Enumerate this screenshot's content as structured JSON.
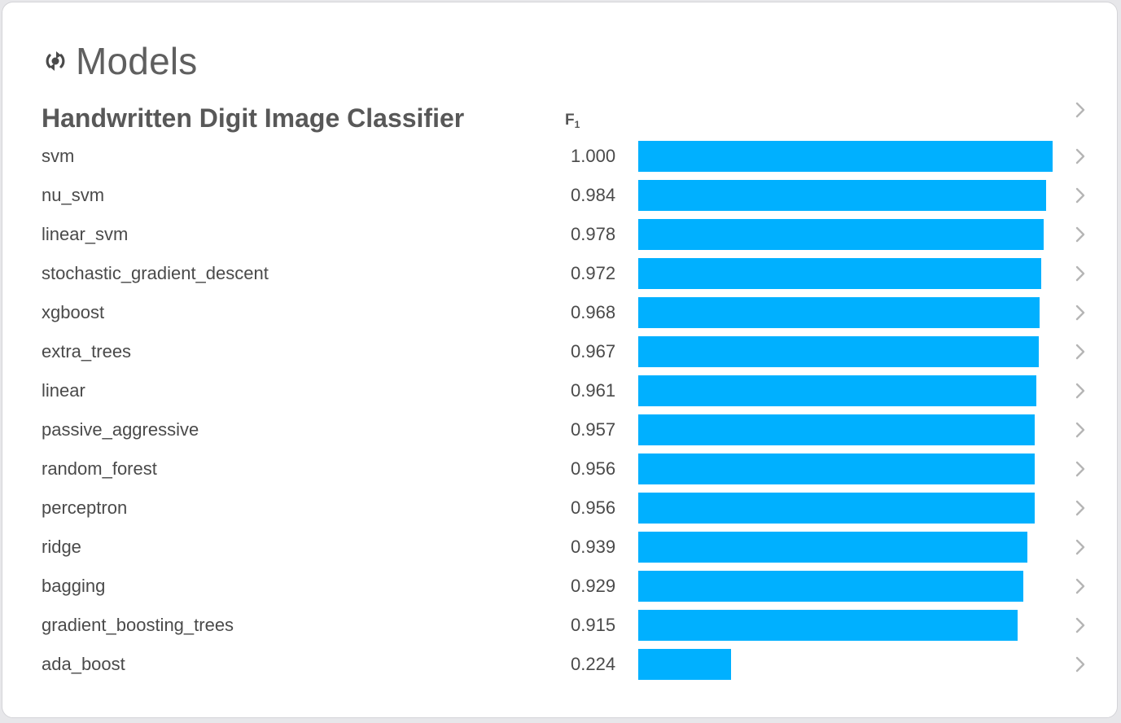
{
  "header": {
    "title": "Models",
    "icon": "model-cycle-icon"
  },
  "section": {
    "title": "Handwritten Digit Image Classifier",
    "metric_label": "F",
    "metric_subscript": "1"
  },
  "colors": {
    "bar": "#00b0ff",
    "chevron": "#b5b5b5"
  },
  "chart_data": {
    "type": "bar",
    "orientation": "horizontal",
    "title": "Handwritten Digit Image Classifier",
    "xlabel": "F1",
    "xlim": [
      0,
      1
    ],
    "categories": [
      "svm",
      "nu_svm",
      "linear_svm",
      "stochastic_gradient_descent",
      "xgboost",
      "extra_trees",
      "linear",
      "passive_aggressive",
      "random_forest",
      "perceptron",
      "ridge",
      "bagging",
      "gradient_boosting_trees",
      "ada_boost"
    ],
    "values": [
      1.0,
      0.984,
      0.978,
      0.972,
      0.968,
      0.967,
      0.961,
      0.957,
      0.956,
      0.956,
      0.939,
      0.929,
      0.915,
      0.224
    ],
    "value_labels": [
      "1.000",
      "0.984",
      "0.978",
      "0.972",
      "0.968",
      "0.967",
      "0.961",
      "0.957",
      "0.956",
      "0.956",
      "0.939",
      "0.929",
      "0.915",
      "0.224"
    ]
  }
}
